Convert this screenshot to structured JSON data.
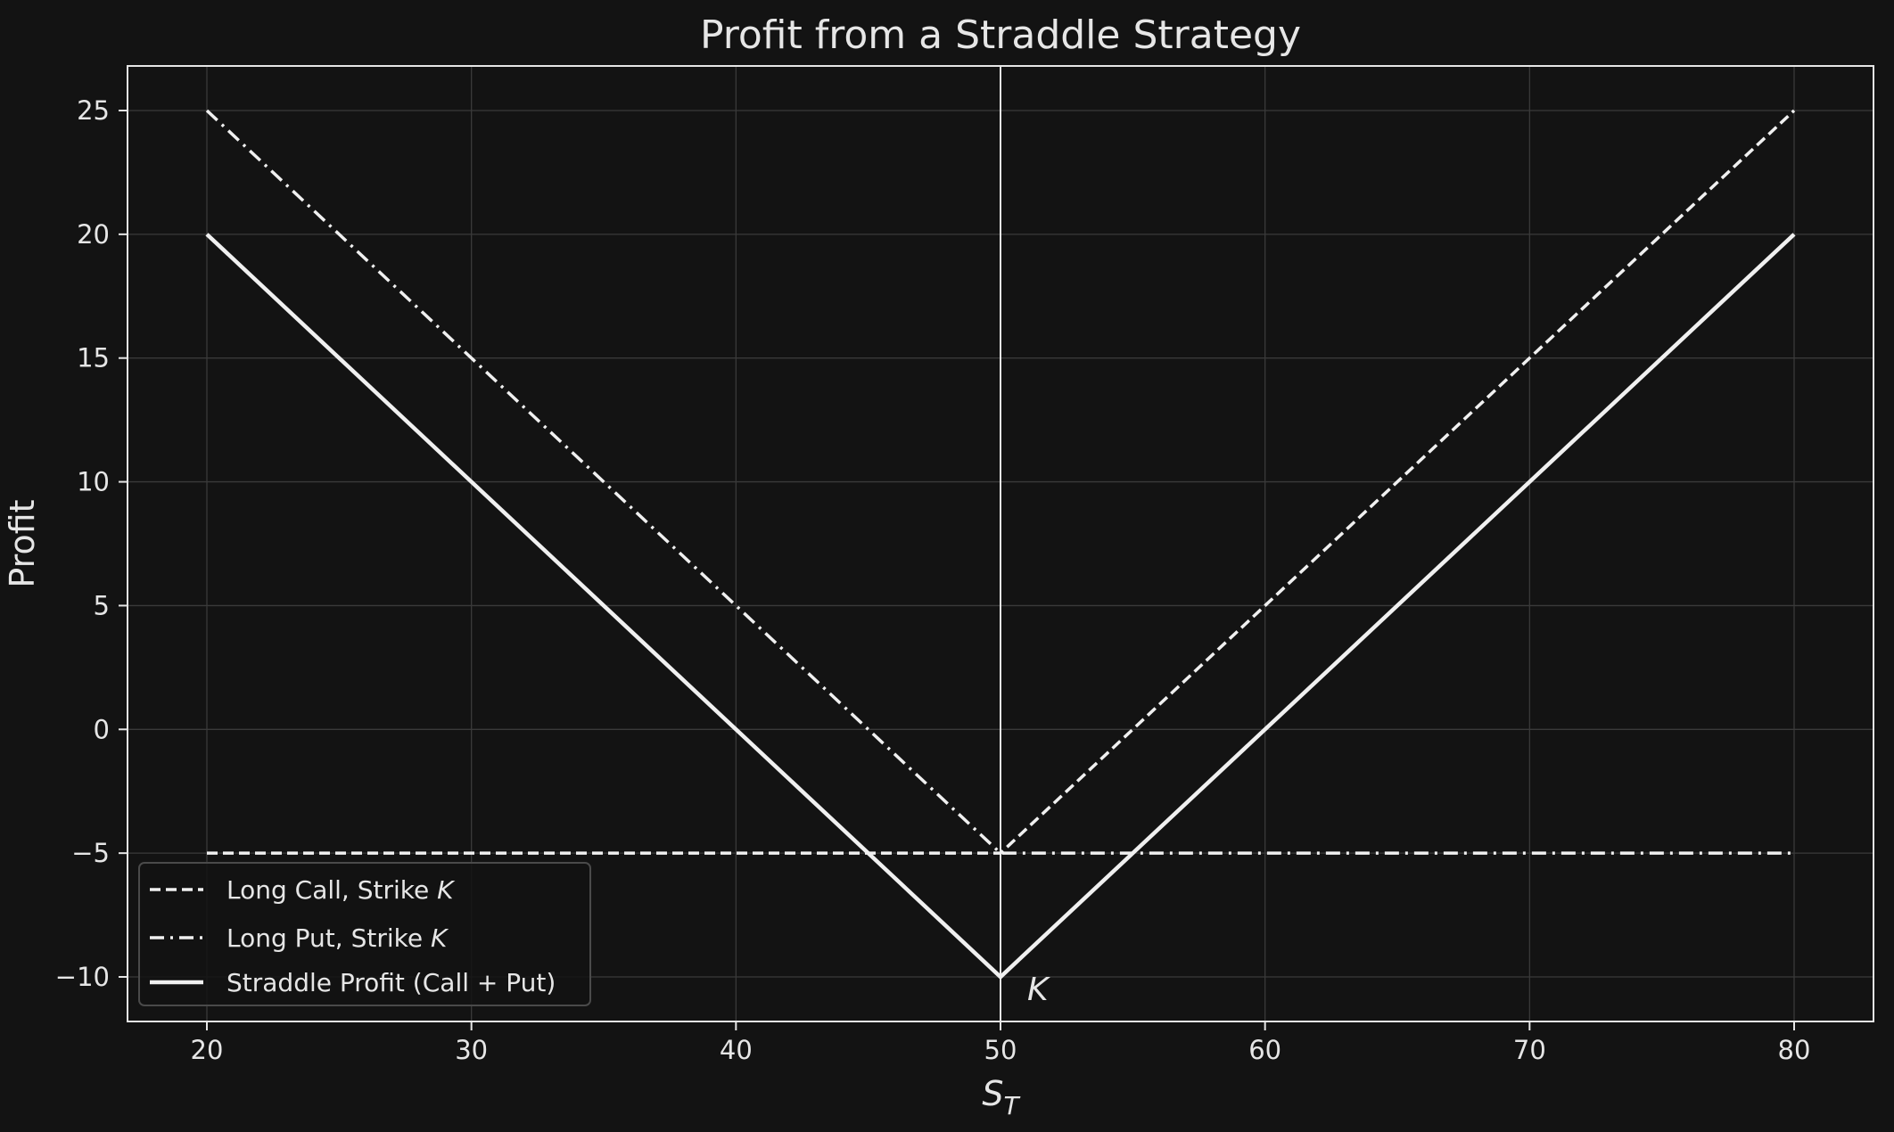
{
  "chart_data": {
    "type": "line",
    "title": "Profit from a Straddle Strategy",
    "xlabel_main": "S",
    "xlabel_sub": "T",
    "ylabel": "Profit",
    "xlim": [
      17,
      83
    ],
    "ylim": [
      -11.8,
      26.8
    ],
    "x_ticks": [
      20,
      30,
      40,
      50,
      60,
      70,
      80
    ],
    "y_ticks": [
      25,
      20,
      15,
      10,
      5,
      0,
      -5,
      -10
    ],
    "x_tick_labels": [
      "20",
      "30",
      "40",
      "50",
      "60",
      "70",
      "80"
    ],
    "y_tick_labels": [
      "25",
      "20",
      "15",
      "10",
      "5",
      "0",
      "−5",
      "−10"
    ],
    "grid": true,
    "background_color": "#131313",
    "line_color": "#f0f0f0",
    "strike_line": {
      "x": 50
    },
    "annotation": {
      "text": "K",
      "x": 50,
      "y": -10
    },
    "legend_position": "lower-left",
    "series": [
      {
        "name": "Long Call, Strike ",
        "name_italic": "K",
        "style": "dashed",
        "x": [
          20,
          50,
          80
        ],
        "y": [
          -5,
          -5,
          25
        ]
      },
      {
        "name": "Long Put, Strike ",
        "name_italic": "K",
        "style": "dashdot",
        "x": [
          20,
          50,
          80
        ],
        "y": [
          25,
          -5,
          -5
        ]
      },
      {
        "name": "Straddle Profit (Call + Put)",
        "name_italic": "",
        "style": "solid",
        "x": [
          20,
          50,
          80
        ],
        "y": [
          20,
          -10,
          20
        ]
      }
    ]
  }
}
